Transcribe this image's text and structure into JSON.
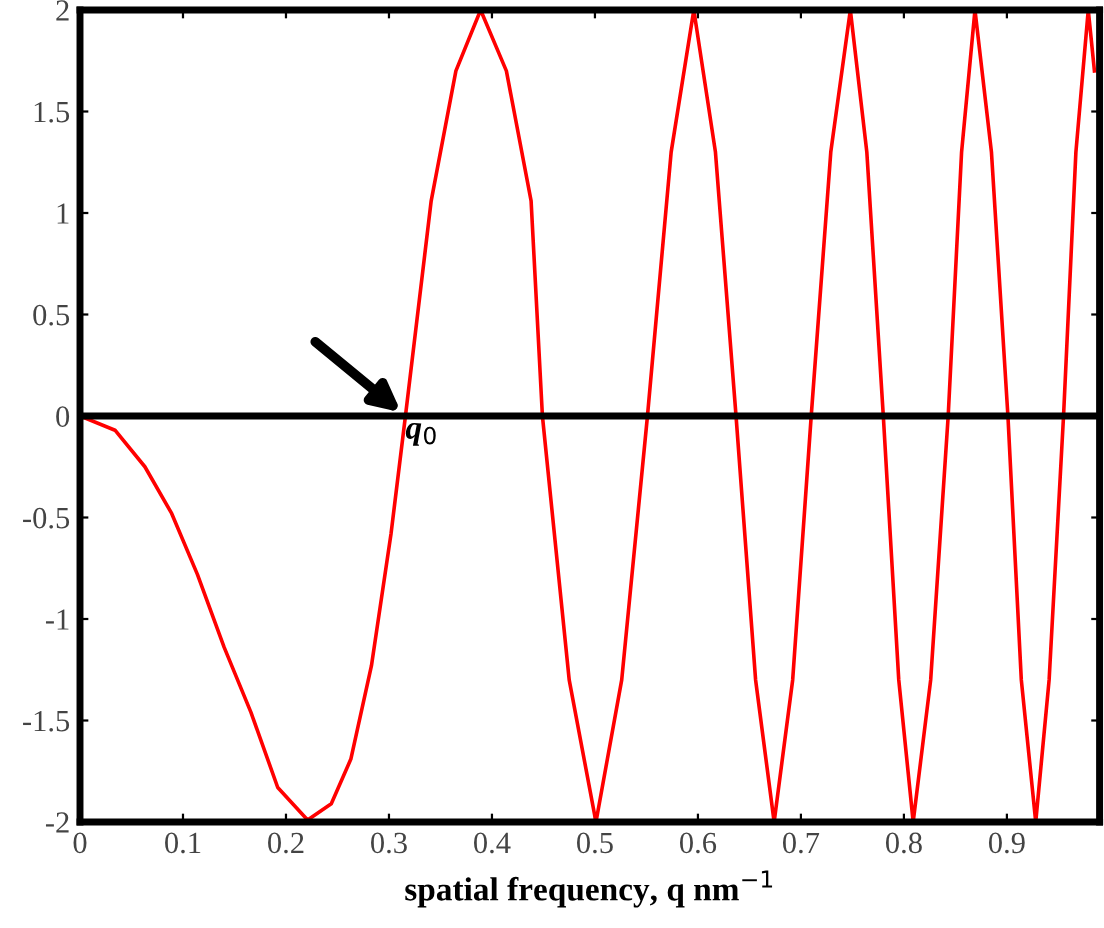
{
  "chart_data": {
    "type": "line",
    "xlabel": "spatial frequency, q nm$^{−1}$",
    "x": [
      0,
      0.034,
      0.063,
      0.089,
      0.114,
      0.14,
      0.166,
      0.192,
      0.221,
      0.244,
      0.263,
      0.283,
      0.302,
      0.316,
      0.341,
      0.365,
      0.389,
      0.414,
      0.438,
      0.449,
      0.475,
      0.501,
      0.526,
      0.551,
      0.574,
      0.596,
      0.617,
      0.637,
      0.656,
      0.674,
      0.692,
      0.71,
      0.729,
      0.748,
      0.764,
      0.78,
      0.795,
      0.809,
      0.826,
      0.843,
      0.856,
      0.869,
      0.885,
      0.901,
      0.914,
      0.928,
      0.941,
      0.955,
      0.967,
      0.979,
      0.985
    ],
    "series": [
      {
        "color": "#ff0000",
        "values": [
          0,
          -0.07,
          -0.25,
          -0.48,
          -0.78,
          -1.14,
          -1.46,
          -1.83,
          -1.99,
          -1.91,
          -1.69,
          -1.23,
          -0.58,
          0,
          1.06,
          1.7,
          2,
          1.7,
          1.06,
          0,
          -1.3,
          -2,
          -1.3,
          0,
          1.3,
          2,
          1.3,
          0,
          -1.3,
          -2,
          -1.3,
          0,
          1.3,
          2,
          1.3,
          0,
          -1.3,
          -2,
          -1.3,
          0,
          1.3,
          2,
          1.3,
          0,
          -1.3,
          -2,
          -1.3,
          0,
          1.3,
          2,
          1.7
        ]
      }
    ],
    "xlim": [
      0,
      0.99
    ],
    "ylim": [
      -2,
      2
    ],
    "xticks": [
      0,
      0.1,
      0.2,
      0.3,
      0.4,
      0.5,
      0.6,
      0.7,
      0.8,
      0.9
    ],
    "yticks": [
      -2,
      -1.5,
      -1,
      -0.5,
      0,
      0.5,
      1,
      1.5,
      2
    ],
    "ref_lines": [
      {
        "axis": "y",
        "value": 0,
        "color": "#000000"
      }
    ],
    "annotations": [
      {
        "text": "q$_{0}$",
        "x": 0.316,
        "y": 0
      }
    ],
    "grid": false,
    "legend": false,
    "marker": "none",
    "line_style": "solid"
  }
}
